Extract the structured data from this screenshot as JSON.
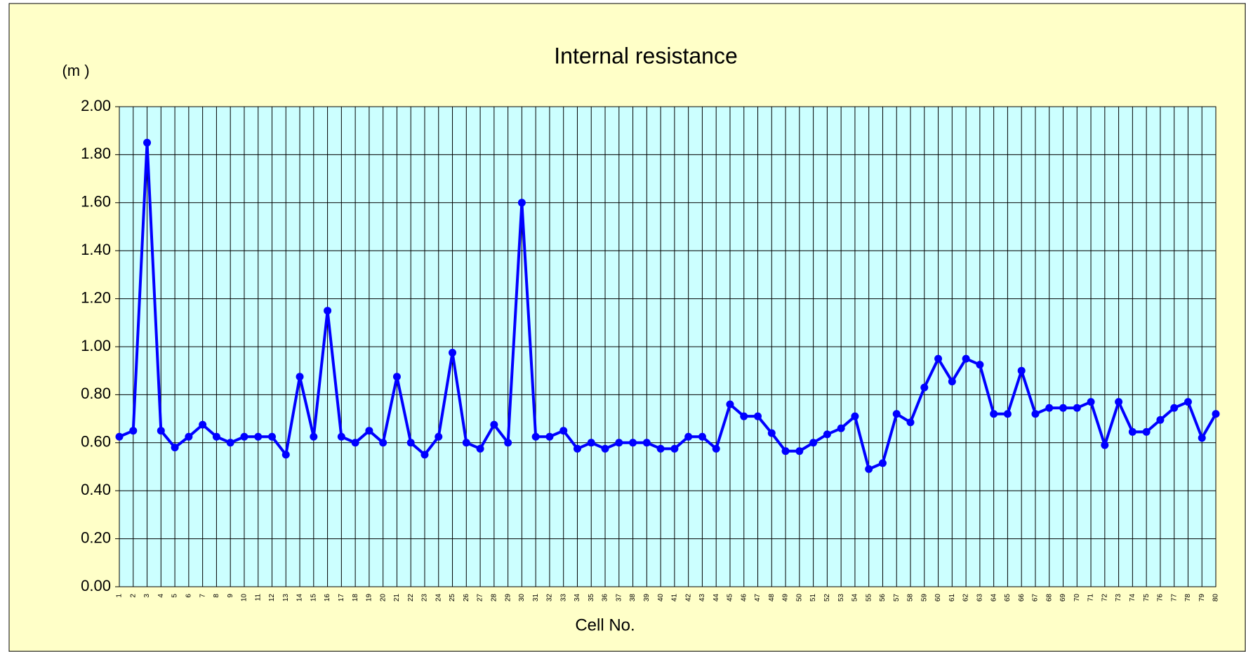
{
  "chart_data": {
    "type": "line",
    "title": "Internal resistance",
    "y_axis_label": "(m )",
    "x_axis_label": "Cell No.",
    "categories": [
      "1",
      "2",
      "3",
      "4",
      "5",
      "6",
      "7",
      "8",
      "9",
      "10",
      "11",
      "12",
      "13",
      "14",
      "15",
      "16",
      "17",
      "18",
      "19",
      "20",
      "21",
      "22",
      "23",
      "24",
      "25",
      "26",
      "27",
      "28",
      "29",
      "30",
      "31",
      "32",
      "33",
      "34",
      "35",
      "36",
      "37",
      "38",
      "39",
      "40",
      "41",
      "42",
      "43",
      "44",
      "45",
      "46",
      "47",
      "48",
      "49",
      "50",
      "51",
      "52",
      "53",
      "54",
      "55",
      "56",
      "57",
      "58",
      "59",
      "60",
      "61",
      "62",
      "63",
      "64",
      "65",
      "66",
      "67",
      "68",
      "69",
      "70",
      "71",
      "72",
      "73",
      "74",
      "75",
      "76",
      "77",
      "78",
      "79",
      "80"
    ],
    "series": [
      {
        "name": "Internal resistance",
        "color": "#0000ff",
        "values": [
          0.625,
          0.65,
          1.85,
          0.65,
          0.58,
          0.625,
          0.675,
          0.625,
          0.6,
          0.625,
          0.625,
          0.625,
          0.55,
          0.875,
          0.625,
          1.15,
          0.625,
          0.6,
          0.65,
          0.6,
          0.875,
          0.6,
          0.55,
          0.625,
          0.975,
          0.6,
          0.575,
          0.675,
          0.6,
          1.6,
          0.625,
          0.625,
          0.65,
          0.575,
          0.6,
          0.575,
          0.6,
          0.6,
          0.6,
          0.575,
          0.575,
          0.625,
          0.625,
          0.575,
          0.76,
          0.71,
          0.71,
          0.64,
          0.565,
          0.565,
          0.6,
          0.635,
          0.66,
          0.71,
          0.49,
          0.515,
          0.72,
          0.685,
          0.83,
          0.95,
          0.855,
          0.95,
          0.925,
          0.72,
          0.72,
          0.9,
          0.72,
          0.745,
          0.745,
          0.745,
          0.77,
          0.59,
          0.77,
          0.645,
          0.645,
          0.695,
          0.745,
          0.77,
          0.62,
          0.72
        ]
      }
    ],
    "ylim": [
      0,
      2
    ],
    "yticks": [
      {
        "value": 0,
        "label": "0.00"
      },
      {
        "value": 0.2,
        "label": "0.20"
      },
      {
        "value": 0.4,
        "label": "0.40"
      },
      {
        "value": 0.6,
        "label": "0.60"
      },
      {
        "value": 0.8,
        "label": "0.80"
      },
      {
        "value": 1,
        "label": "1.00"
      },
      {
        "value": 1.2,
        "label": "1.20"
      },
      {
        "value": 1.4,
        "label": "1.40"
      },
      {
        "value": 1.6,
        "label": "1.60"
      },
      {
        "value": 1.8,
        "label": "1.80"
      },
      {
        "value": 2,
        "label": "2.00"
      }
    ],
    "grid": true,
    "background": "#ffffc8",
    "plot_background": "#ccffff"
  }
}
